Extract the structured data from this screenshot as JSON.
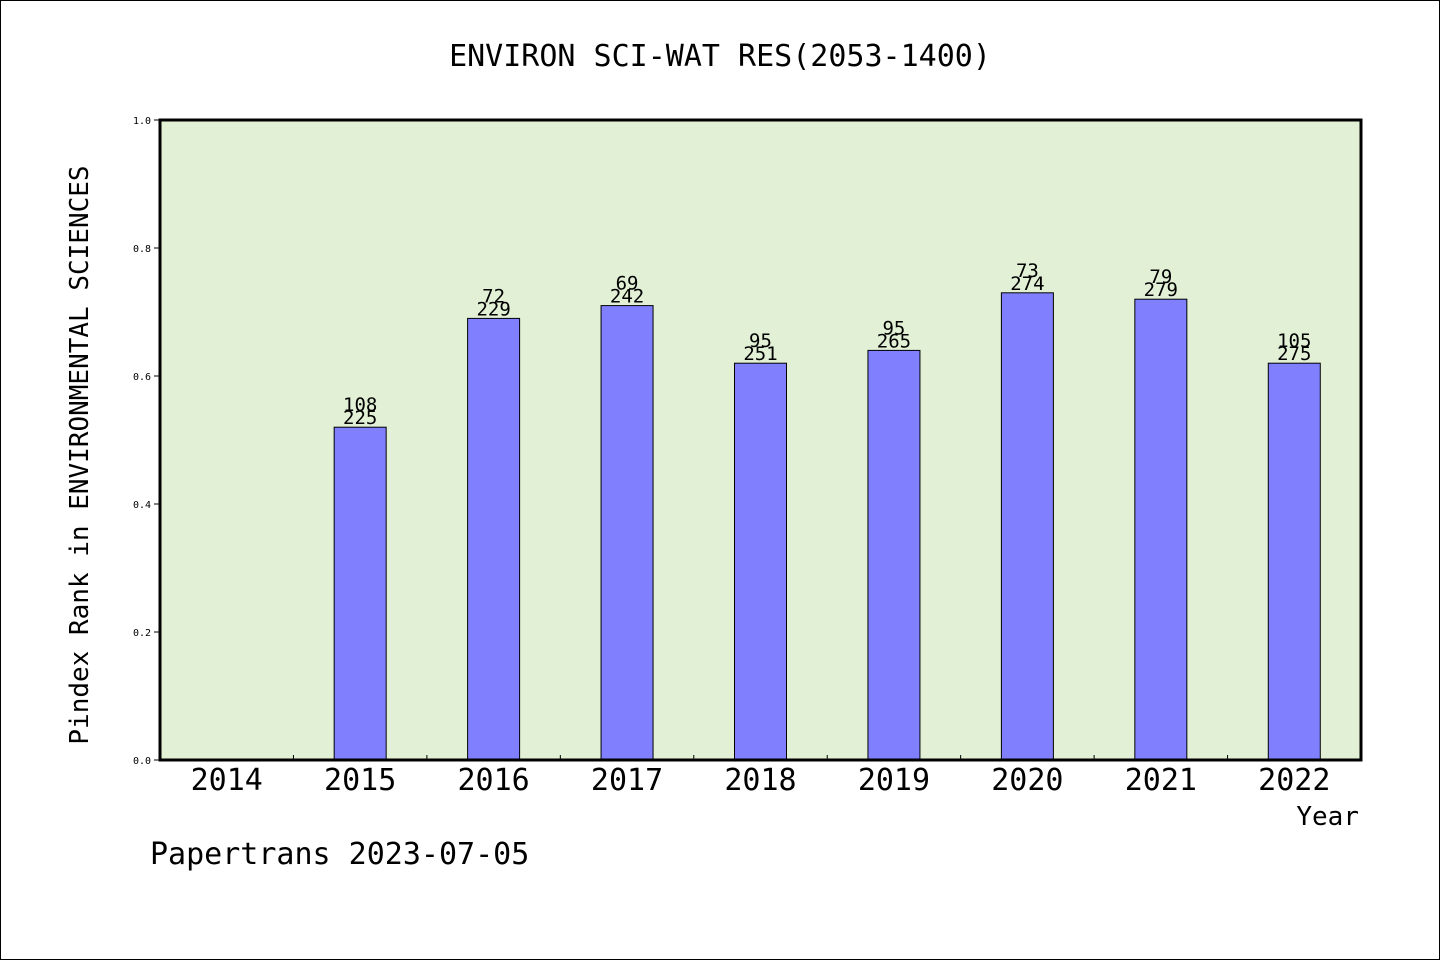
{
  "chart_data": {
    "type": "bar",
    "title": "ENVIRON SCI-WAT RES(2053-1400)",
    "xlabel": "Year",
    "ylabel": "Pindex Rank in ENVIRONMENTAL SCIENCES",
    "ylim": [
      0,
      1.0
    ],
    "yticks": [
      "0.0",
      "0.2",
      "0.4",
      "0.6",
      "0.8",
      "1.0"
    ],
    "grid": false,
    "categories": [
      "2014",
      "2015",
      "2016",
      "2017",
      "2018",
      "2019",
      "2020",
      "2021",
      "2022"
    ],
    "values": [
      null,
      0.52,
      0.69,
      0.71,
      0.62,
      0.64,
      0.73,
      0.72,
      0.62
    ],
    "rank_labels": [
      "",
      "108",
      "72",
      "69",
      "95",
      "95",
      "73",
      "79",
      "105"
    ],
    "total_labels": [
      "",
      "225",
      "229",
      "242",
      "251",
      "265",
      "274",
      "279",
      "275"
    ],
    "bar_color": "#8080ff",
    "plot_background": "#e2f0d6"
  },
  "footer": {
    "text": "Papertrans 2023-07-05"
  }
}
